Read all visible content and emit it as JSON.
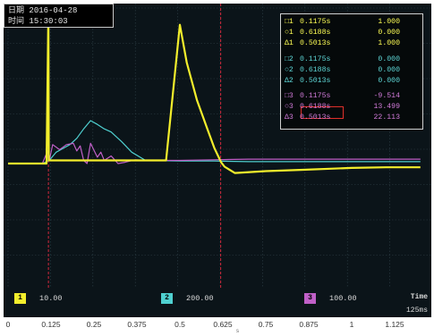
{
  "info": {
    "date_label": "日期",
    "date_value": "2016-04-28",
    "time_label": "时间",
    "time_value": "15:30:03"
  },
  "cursors": {
    "rows": [
      {
        "symbol": "□1",
        "v1": "0.1175s",
        "v2": "1.000",
        "color": "#ffff55"
      },
      {
        "symbol": "○1",
        "v1": "0.6188s",
        "v2": "0.000",
        "color": "#ffff55"
      },
      {
        "symbol": "Δ1",
        "v1": "0.5013s",
        "v2": "1.000",
        "color": "#ffff55"
      },
      {
        "symbol": "□2",
        "v1": "0.1175s",
        "v2": "0.000",
        "color": "#5fd8d8"
      },
      {
        "symbol": "○2",
        "v1": "0.6188s",
        "v2": "0.000",
        "color": "#5fd8d8"
      },
      {
        "symbol": "Δ2",
        "v1": "0.5013s",
        "v2": "0.000",
        "color": "#5fd8d8"
      },
      {
        "symbol": "□3",
        "v1": "0.1175s",
        "v2": "-9.514",
        "color": "#d07ad8"
      },
      {
        "symbol": "○3",
        "v1": "0.6188s",
        "v2": "13.499",
        "color": "#d07ad8"
      },
      {
        "symbol": "Δ3",
        "v1": "0.5013s",
        "v2": "22.113",
        "color": "#d07ad8"
      }
    ]
  },
  "channels": [
    {
      "badge": "1",
      "scale": "10.00",
      "color": "#f3ee2c"
    },
    {
      "badge": "2",
      "scale": "200.00",
      "color": "#4fd0d0"
    },
    {
      "badge": "3",
      "scale": "100.00",
      "color": "#c060c8"
    }
  ],
  "timebase": {
    "label": "Time",
    "value": "125ms"
  },
  "axis": {
    "ticks": [
      "0",
      "0.125",
      "0.25",
      "0.375",
      "0.5",
      "0.625",
      "0.75",
      "0.875",
      "1",
      "1.125"
    ],
    "unit": "s"
  },
  "chart_data": {
    "type": "line",
    "xlim": [
      0,
      1.2
    ],
    "cursor_times": [
      0.1175,
      0.6188
    ],
    "series": [
      {
        "color": "#f3ee2c",
        "x": [
          0,
          0.112,
          0.1175,
          0.1185,
          0.13,
          0.2,
          0.3,
          0.4,
          0.46,
          0.5,
          0.52,
          0.55,
          0.58,
          0.6,
          0.62,
          0.63,
          0.66,
          0.75,
          0.85,
          1.0,
          1.1,
          1.2
        ],
        "y": [
          0,
          0,
          2.45,
          0.05,
          0.05,
          0.05,
          0.05,
          0.05,
          0.05,
          2.2,
          1.6,
          1.0,
          0.55,
          0.25,
          0.02,
          -0.05,
          -0.15,
          -0.12,
          -0.1,
          -0.07,
          -0.06,
          -0.06
        ]
      },
      {
        "color": "#4fd0d0",
        "x": [
          0,
          0.1,
          0.12,
          0.14,
          0.16,
          0.18,
          0.2,
          0.22,
          0.24,
          0.26,
          0.28,
          0.3,
          0.33,
          0.36,
          0.4,
          0.5,
          0.6,
          0.7,
          0.8,
          0.9,
          1.0,
          1.2
        ],
        "y": [
          0,
          0,
          0.05,
          0.18,
          0.24,
          0.3,
          0.4,
          0.55,
          0.68,
          0.62,
          0.55,
          0.5,
          0.35,
          0.18,
          0.05,
          0.04,
          0.04,
          0.03,
          0.03,
          0.03,
          0.03,
          0.03
        ]
      },
      {
        "color": "#c060c8",
        "x": [
          0,
          0.1,
          0.115,
          0.12,
          0.13,
          0.15,
          0.17,
          0.19,
          0.2,
          0.21,
          0.22,
          0.23,
          0.24,
          0.26,
          0.27,
          0.28,
          0.3,
          0.32,
          0.34,
          0.37,
          0.4,
          0.5,
          0.6,
          0.7,
          0.8,
          1.0,
          1.2
        ],
        "y": [
          0,
          0,
          0.2,
          0.05,
          0.3,
          0.22,
          0.3,
          0.32,
          0.2,
          0.28,
          0.05,
          0.0,
          0.32,
          0.1,
          0.18,
          0.05,
          0.12,
          0.0,
          0.02,
          0.06,
          0.05,
          0.05,
          0.06,
          0.07,
          0.07,
          0.07,
          0.07
        ]
      }
    ]
  }
}
